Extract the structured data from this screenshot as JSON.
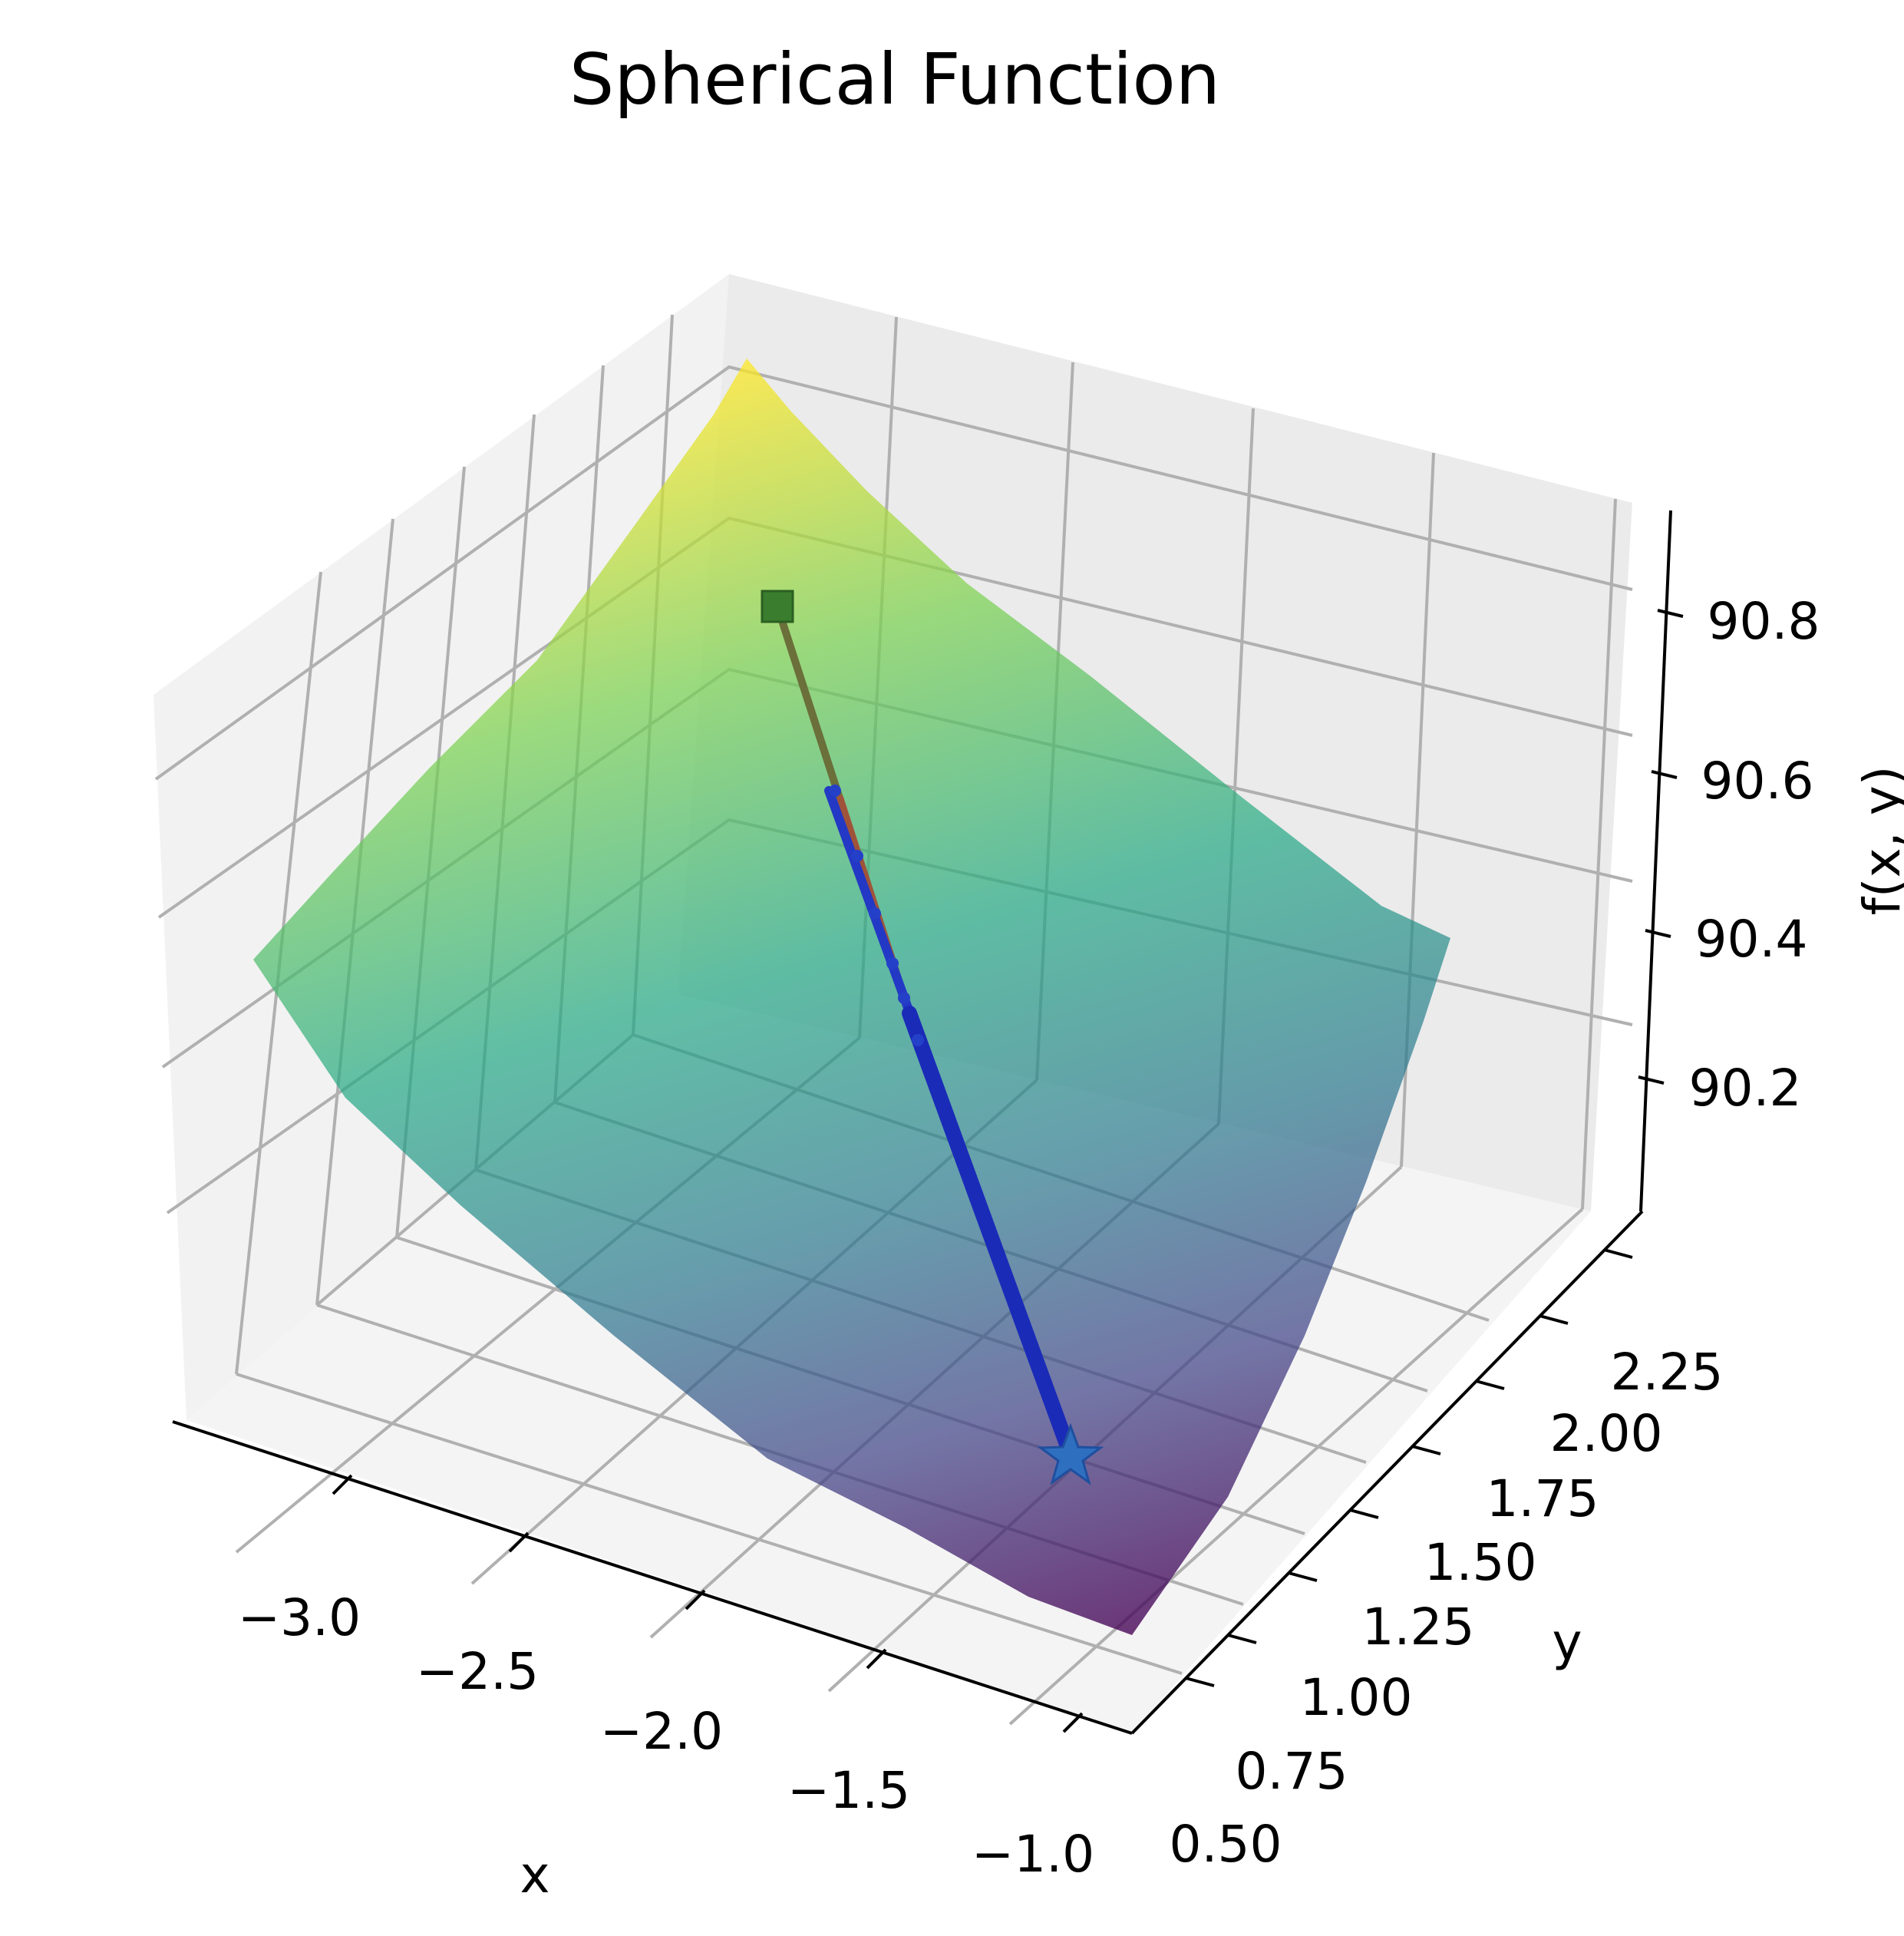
{
  "chart_data": {
    "type": "surface3d",
    "title": "Spherical Function",
    "xlabel": "x",
    "ylabel": "y",
    "zlabel": "f(x, y)",
    "x_ticks": [
      "−3.0",
      "−2.5",
      "−2.0",
      "−1.5",
      "−1.0"
    ],
    "y_ticks": [
      "0.50",
      "0.75",
      "1.00",
      "1.25",
      "1.50",
      "1.75",
      "2.00",
      "2.25"
    ],
    "z_ticks": [
      "90.2",
      "90.4",
      "90.6",
      "90.8"
    ],
    "xlim": [
      -3.35,
      -0.9
    ],
    "ylim": [
      0.45,
      2.45
    ],
    "zlim": [
      90.05,
      90.9
    ],
    "grid": true,
    "colormap": "viridis",
    "surface_alpha": 0.7,
    "path": {
      "start": {
        "x": -3.0,
        "y": 2.3,
        "z": 90.77,
        "marker": "square",
        "color": "#3a7d2e"
      },
      "end": {
        "x": -1.35,
        "y": 0.85,
        "z": 90.31,
        "marker": "star",
        "color": "#2f6fbf"
      },
      "colors": [
        "#5a6a3a",
        "#c0392b",
        "#1f2fbf"
      ]
    }
  }
}
